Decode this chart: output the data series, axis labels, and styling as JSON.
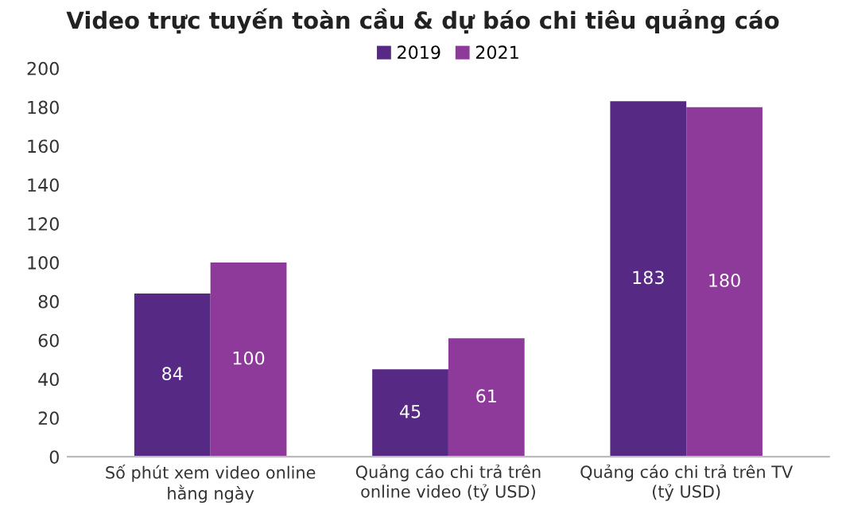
{
  "chart_data": {
    "type": "bar",
    "title": "Video trực tuyến toàn cầu & dự báo chi tiêu quảng cáo",
    "categories": [
      "Số phút xem video online\nhằng ngày",
      "Quảng cáo chi trả trên\nonline video (tỷ USD)",
      "Quảng cáo chi trả trên TV\n(tỷ USD)"
    ],
    "series": [
      {
        "name": "2019",
        "color": "#562a84",
        "values": [
          84,
          45,
          183
        ]
      },
      {
        "name": "2021",
        "color": "#8e3a9a",
        "values": [
          100,
          61,
          180
        ]
      }
    ],
    "ylim": [
      0,
      200
    ],
    "yticks": [
      0,
      20,
      40,
      60,
      80,
      100,
      120,
      140,
      160,
      180,
      200
    ],
    "data_labels": true,
    "legend": "top",
    "grid": false
  }
}
